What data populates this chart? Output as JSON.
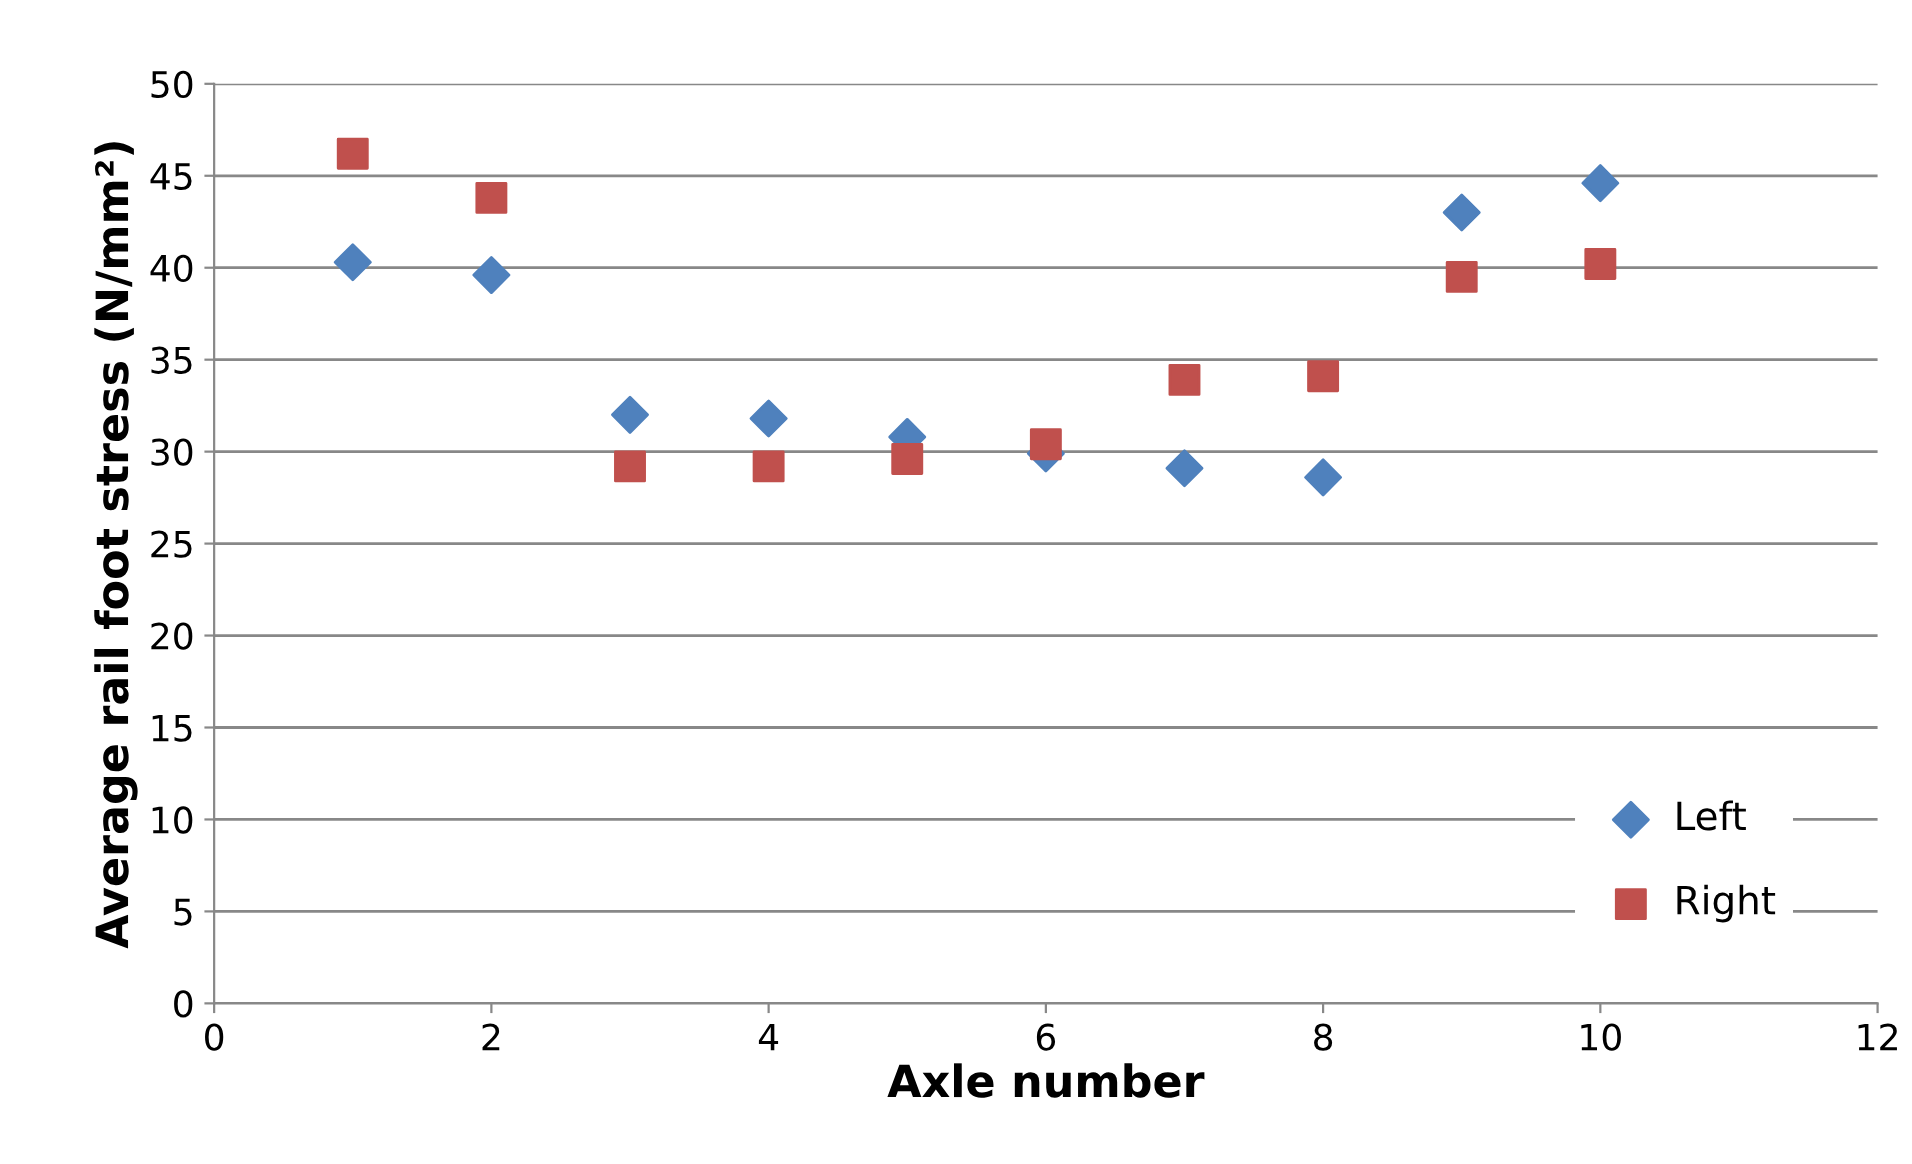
{
  "chart_data": {
    "type": "scatter",
    "xlabel": "Axle number",
    "ylabel": "Average rail foot stress (N/mm²)",
    "xlim": [
      0,
      12
    ],
    "xticks": [
      0,
      2,
      4,
      6,
      8,
      10,
      12
    ],
    "ylim": [
      0,
      50
    ],
    "yticks": [
      0,
      5,
      10,
      15,
      20,
      25,
      30,
      35,
      40,
      45,
      50
    ],
    "grid": "y",
    "legend": "bottom right",
    "series": [
      {
        "name": "Left",
        "color": "#4f81bd",
        "marker": "diamond",
        "x": [
          1,
          2,
          3,
          4,
          5,
          6,
          7,
          8,
          9,
          10
        ],
        "values": [
          40.3,
          39.6,
          32.0,
          31.8,
          30.8,
          29.9,
          29.1,
          28.6,
          43.0,
          44.6
        ]
      },
      {
        "name": "Right",
        "color": "#c0504d",
        "marker": "square",
        "x": [
          1,
          2,
          3,
          4,
          5,
          6,
          7,
          8,
          9,
          10
        ],
        "values": [
          46.2,
          43.8,
          29.2,
          29.2,
          29.6,
          30.4,
          33.9,
          34.1,
          39.5,
          40.2
        ]
      }
    ]
  }
}
